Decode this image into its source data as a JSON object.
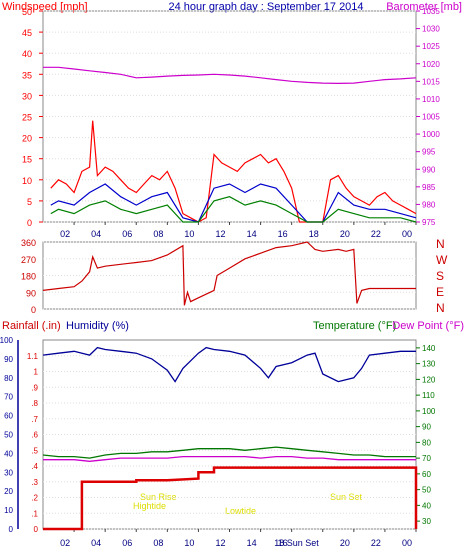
{
  "header": {
    "left_label": "Windspeed [mph]",
    "center_title": "24 hour graph day : September 17 2014",
    "right_label": "Barometer [mb]"
  },
  "direction_axis": {
    "labels": [
      "N",
      "W",
      "S",
      "E",
      "N"
    ]
  },
  "lower_header": {
    "rainfall_label": "Rainfall (.in)",
    "humidity_label": "Humidity (%)",
    "temperature_label": "Temperature (°F)",
    "dewpoint_label": "Dew Point (°F)"
  },
  "colors": {
    "windspeed": "#ff0000",
    "gust_avg": "#0000cc",
    "wind_low": "#008000",
    "barometer": "#cc00cc",
    "direction": "#cc0000",
    "humidity": "#000099",
    "temperature": "#007700",
    "dewpoint": "#cc00cc",
    "rainfall": "#dd0000",
    "events": "#dddd00",
    "title": "#0000aa"
  },
  "chart_data": [
    {
      "type": "line",
      "x_unit": "hour",
      "xticks": [
        "02",
        "04",
        "06",
        "08",
        "10",
        "12",
        "14",
        "16",
        "18",
        "20",
        "22",
        "00"
      ],
      "y_left": {
        "label": "Windspeed [mph]",
        "ticks": [
          0,
          5,
          10,
          15,
          20,
          25,
          30,
          35,
          40,
          45,
          50
        ],
        "ylim": [
          0,
          50
        ]
      },
      "y_right": {
        "label": "Barometer [mb]",
        "ticks": [
          975,
          980,
          985,
          990,
          995,
          1000,
          1005,
          1010,
          1015,
          1020,
          1025,
          1030,
          1035
        ],
        "ylim": [
          975,
          1035
        ]
      },
      "series": [
        {
          "name": "Windspeed",
          "axis": "left",
          "x": [
            0.5,
            1,
            1.5,
            2,
            2.5,
            3,
            3.2,
            3.5,
            4,
            4.5,
            5,
            5.5,
            6,
            6.5,
            7,
            7.5,
            8,
            8.5,
            9,
            9.5,
            10,
            10.5,
            11,
            11.5,
            12,
            12.5,
            13,
            13.5,
            14,
            14.5,
            15,
            15.5,
            16,
            16.5,
            17,
            17.5,
            18,
            18.5,
            19,
            19.5,
            20,
            20.5,
            21,
            21.5,
            22,
            22.5,
            23,
            23.5,
            24
          ],
          "y": [
            8,
            10,
            9,
            7,
            12,
            13,
            24,
            11,
            13,
            12,
            10,
            8,
            7,
            9,
            11,
            10,
            12,
            8,
            2,
            1,
            0,
            1,
            16,
            14,
            13,
            12,
            14,
            15,
            16,
            14,
            15,
            12,
            8,
            0,
            0,
            0,
            0,
            10,
            11,
            8,
            6,
            5,
            4,
            6,
            7,
            5,
            4,
            3,
            2
          ]
        },
        {
          "name": "Avg",
          "axis": "left",
          "x": [
            0.5,
            1,
            2,
            3,
            4,
            5,
            6,
            7,
            8,
            9,
            10,
            11,
            12,
            13,
            14,
            15,
            16,
            17,
            18,
            19,
            20,
            21,
            22,
            23,
            24
          ],
          "y": [
            4,
            5,
            4,
            7,
            9,
            6,
            4,
            6,
            7,
            1,
            0,
            8,
            9,
            7,
            9,
            8,
            4,
            0,
            0,
            7,
            4,
            3,
            3,
            2,
            1
          ]
        },
        {
          "name": "Low",
          "axis": "left",
          "x": [
            0.5,
            1,
            2,
            3,
            4,
            5,
            6,
            7,
            8,
            9,
            10,
            11,
            12,
            13,
            14,
            15,
            16,
            17,
            18,
            19,
            20,
            21,
            22,
            23,
            24
          ],
          "y": [
            2,
            3,
            2,
            4,
            5,
            3,
            2,
            3,
            4,
            0,
            0,
            5,
            6,
            4,
            5,
            4,
            2,
            0,
            0,
            3,
            2,
            1,
            1,
            1,
            0
          ]
        },
        {
          "name": "Barometer",
          "axis": "right",
          "x": [
            0,
            1,
            2,
            3,
            4,
            5,
            6,
            7,
            8,
            9,
            10,
            11,
            12,
            13,
            14,
            15,
            16,
            17,
            18,
            19,
            20,
            21,
            22,
            23,
            24
          ],
          "y": [
            1019,
            1019,
            1018.5,
            1018,
            1017.5,
            1017,
            1016,
            1016.2,
            1016.5,
            1016.7,
            1016.8,
            1017,
            1016.8,
            1016.5,
            1016,
            1015.5,
            1015,
            1014.7,
            1014.5,
            1014.4,
            1014.5,
            1015,
            1015.5,
            1015.7,
            1016
          ]
        }
      ]
    },
    {
      "type": "line",
      "x_unit": "hour",
      "xticks": [
        "02",
        "04",
        "06",
        "08",
        "10",
        "12",
        "14",
        "16",
        "18",
        "20",
        "22",
        "00"
      ],
      "y_left": {
        "ticks": [
          0,
          90,
          180,
          270,
          360
        ],
        "ylim": [
          0,
          360
        ]
      },
      "series": [
        {
          "name": "Wind Direction",
          "x": [
            0,
            1,
            2,
            2.5,
            3,
            3.2,
            3.5,
            4,
            5,
            6,
            7,
            8,
            9,
            9.1,
            9.3,
            9.5,
            10,
            11,
            11.2,
            12,
            13,
            14,
            15,
            16,
            17,
            17.5,
            18,
            19,
            19.5,
            20,
            20.2,
            20.5,
            21,
            22,
            23,
            24
          ],
          "y": [
            100,
            110,
            120,
            150,
            200,
            280,
            220,
            230,
            240,
            250,
            260,
            290,
            340,
            20,
            90,
            40,
            60,
            100,
            180,
            220,
            270,
            300,
            330,
            340,
            360,
            320,
            310,
            320,
            310,
            320,
            30,
            100,
            110,
            110,
            110,
            110
          ]
        }
      ]
    },
    {
      "type": "line",
      "x_unit": "hour",
      "xticks": [
        "02",
        "04",
        "06",
        "08",
        "10",
        "12",
        "14",
        "16",
        "18 Sun Set",
        "20",
        "22",
        "00"
      ],
      "y_left_humidity": {
        "ticks": [
          0,
          10,
          20,
          30,
          40,
          50,
          60,
          70,
          80,
          90,
          100
        ],
        "ylim": [
          0,
          100
        ]
      },
      "y_left_rainfall": {
        "ticks": [
          0,
          0.1,
          0.2,
          0.3,
          0.4,
          0.5,
          0.6,
          0.7,
          0.8,
          0.9,
          1,
          1.1
        ],
        "ylim": [
          0,
          1.2
        ]
      },
      "y_right": {
        "ticks": [
          30,
          40,
          50,
          60,
          70,
          80,
          90,
          100,
          110,
          120,
          130,
          140
        ],
        "ylim": [
          25,
          145
        ]
      },
      "events": [
        "Sun Rise",
        "Hightide",
        "Lowtide",
        "Sun Set"
      ],
      "series": [
        {
          "name": "Humidity",
          "axis": "humidity",
          "x": [
            0,
            1,
            2,
            3,
            3.5,
            4,
            5,
            6,
            7,
            8,
            8.5,
            9,
            10,
            10.5,
            11,
            12,
            13,
            14,
            14.5,
            15,
            16,
            17,
            17.5,
            18,
            19,
            20,
            20.5,
            21,
            22,
            23,
            24
          ],
          "y": [
            92,
            93,
            94,
            92,
            96,
            95,
            94,
            93,
            90,
            84,
            78,
            85,
            93,
            96,
            95,
            94,
            92,
            85,
            80,
            86,
            88,
            92,
            93,
            82,
            78,
            80,
            85,
            92,
            93,
            94,
            94
          ]
        },
        {
          "name": "Temperature",
          "axis": "temp",
          "x": [
            0,
            1,
            2,
            3,
            4,
            5,
            6,
            7,
            8,
            9,
            10,
            11,
            12,
            13,
            14,
            15,
            16,
            17,
            18,
            19,
            20,
            21,
            22,
            23,
            24
          ],
          "y": [
            72,
            71,
            71,
            70,
            72,
            73,
            73,
            74,
            74,
            75,
            76,
            76,
            76,
            75,
            76,
            77,
            76,
            75,
            74,
            73,
            72,
            72,
            71,
            71,
            71
          ]
        },
        {
          "name": "Dew Point",
          "axis": "temp",
          "x": [
            0,
            1,
            2,
            3,
            4,
            5,
            6,
            7,
            8,
            9,
            10,
            11,
            12,
            13,
            14,
            15,
            16,
            17,
            18,
            19,
            20,
            21,
            22,
            23,
            24
          ],
          "y": [
            69,
            69,
            69,
            68,
            69,
            70,
            70,
            70,
            70,
            71,
            71,
            71,
            71,
            71,
            70,
            71,
            71,
            70,
            70,
            69,
            69,
            69,
            69,
            69,
            69
          ]
        },
        {
          "name": "Rainfall",
          "axis": "rainfall",
          "x": [
            0,
            2.5,
            2.5,
            6,
            6,
            8,
            8,
            10,
            10,
            11,
            11,
            24,
            24
          ],
          "y": [
            0,
            0,
            0.3,
            0.3,
            0.31,
            0.31,
            0.31,
            0.32,
            0.36,
            0.36,
            0.39,
            0.39,
            0
          ]
        }
      ]
    }
  ]
}
